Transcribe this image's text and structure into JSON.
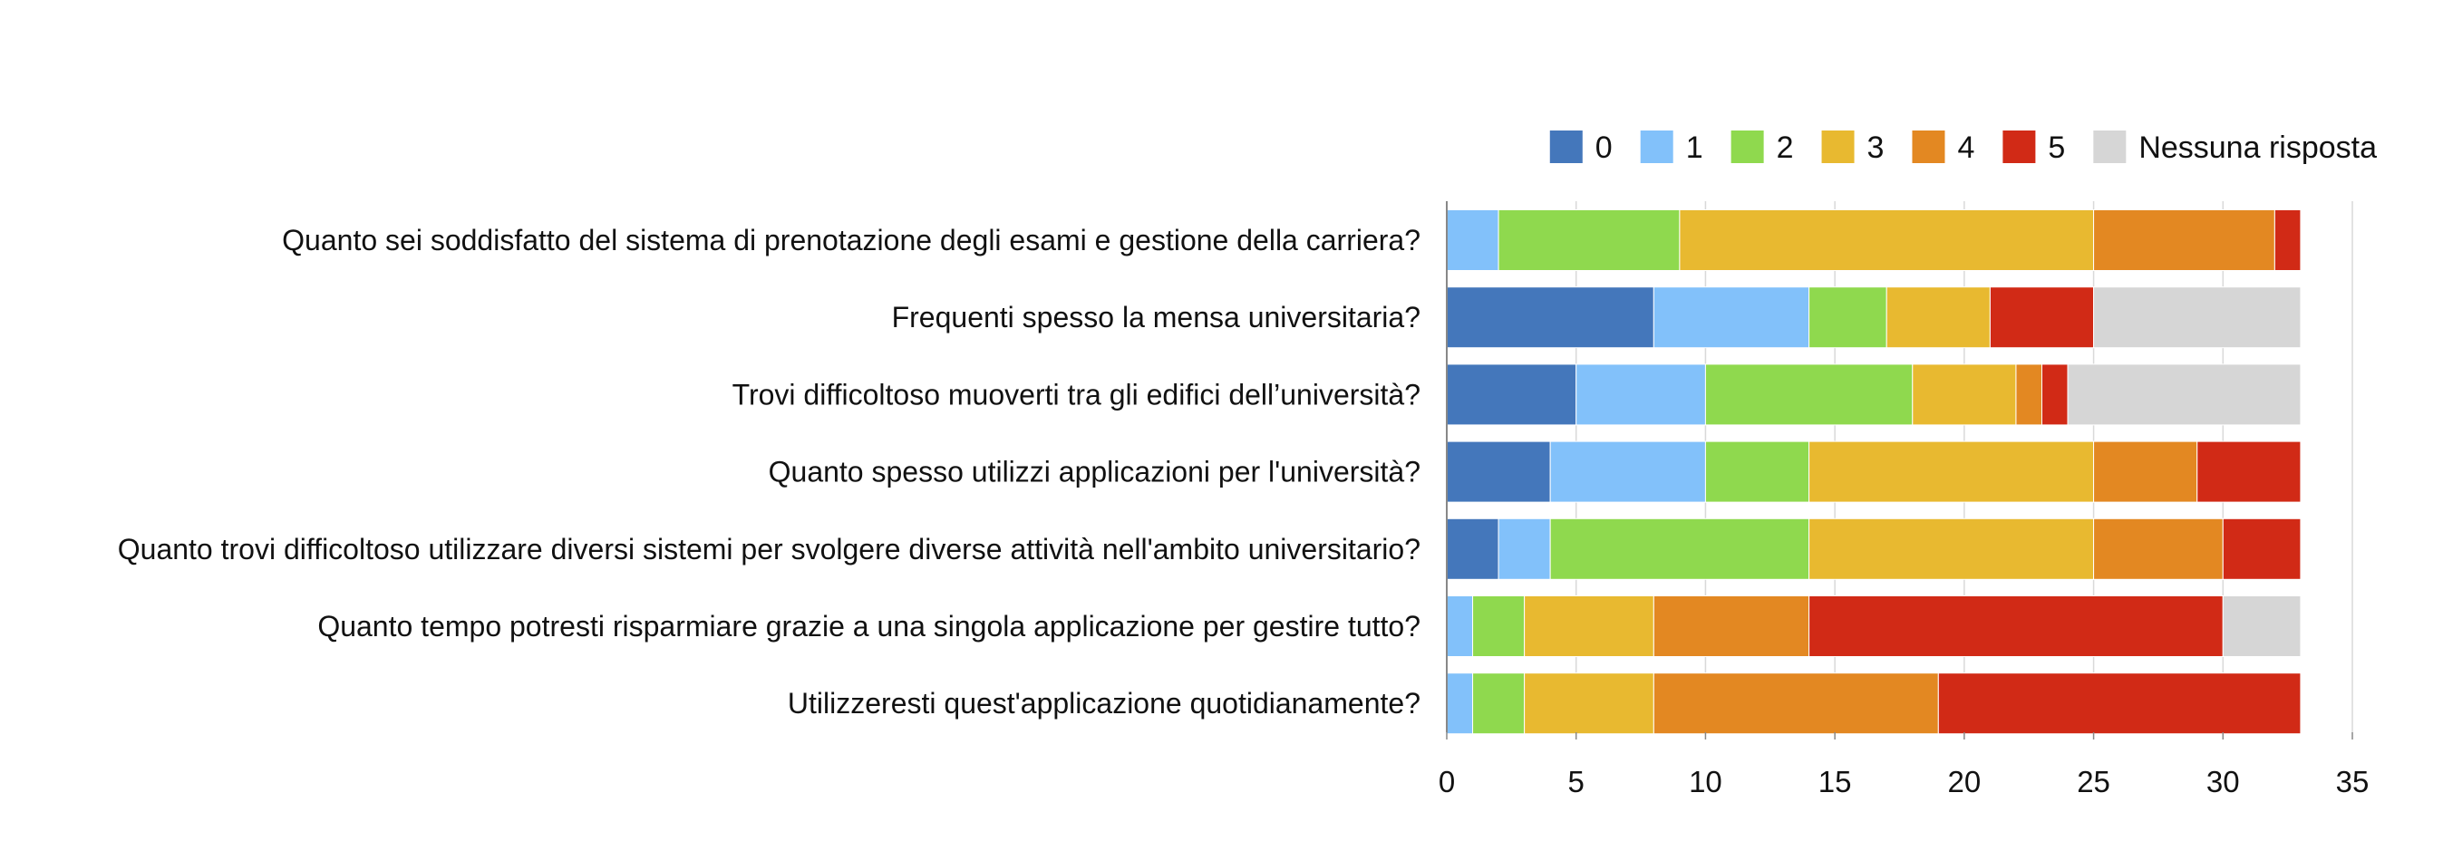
{
  "chart_data": {
    "type": "bar",
    "orientation": "horizontal",
    "stacked": true,
    "title": "",
    "xlabel": "",
    "ylabel": "",
    "xlim": [
      0,
      35
    ],
    "x_ticks": [
      "0",
      "5",
      "10",
      "15",
      "20",
      "25",
      "30",
      "35"
    ],
    "grid": true,
    "legend_position": "top-right",
    "categories": [
      "Quanto sei soddisfatto del sistema di prenotazione degli esami e gestione della carriera?",
      "Frequenti spesso la mensa universitaria?",
      "Trovi difficoltoso muoverti tra gli edifici dell’università?",
      "Quanto spesso utilizzi applicazioni per l'università?",
      "Quanto trovi difficoltoso utilizzare diversi sistemi per svolgere diverse attività nell'ambito universitario?",
      "Quanto tempo potresti risparmiare grazie a una singola applicazione per gestire tutto?",
      "Utilizzeresti quest'applicazione quotidianamente?"
    ],
    "series": [
      {
        "name": "0",
        "color": "#4477BB",
        "values": [
          0,
          8,
          5,
          4,
          2,
          0,
          0
        ]
      },
      {
        "name": "1",
        "color": "#82C1FA",
        "values": [
          2,
          6,
          5,
          6,
          2,
          1,
          1
        ]
      },
      {
        "name": "2",
        "color": "#8FD94E",
        "values": [
          7,
          3,
          8,
          4,
          10,
          2,
          2
        ]
      },
      {
        "name": "3",
        "color": "#E8B930",
        "values": [
          16,
          4,
          4,
          11,
          11,
          5,
          5
        ]
      },
      {
        "name": "4",
        "color": "#E38822",
        "values": [
          7,
          0,
          1,
          4,
          5,
          6,
          11
        ]
      },
      {
        "name": "5",
        "color": "#D12A16",
        "values": [
          1,
          4,
          1,
          4,
          3,
          16,
          14
        ]
      },
      {
        "name": "Nessuna risposta",
        "color": "#D6D6D6",
        "values": [
          0,
          8,
          9,
          0,
          0,
          3,
          0
        ]
      }
    ]
  }
}
